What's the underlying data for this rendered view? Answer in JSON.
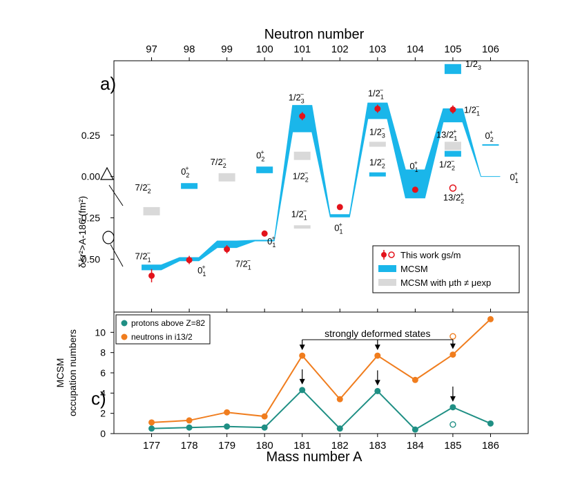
{
  "figure": {
    "top_axis_title": "Neutron number",
    "bottom_axis_title": "Mass number A",
    "colors": {
      "mcsm": "#1ab6ea",
      "mcsm_mismatch": "#d9d9d9",
      "data": "#e3131b",
      "protons": "#1f8f84",
      "neutrons": "#f07d1e"
    }
  },
  "chart_data": [
    {
      "type": "scatter",
      "panel_label": "a)",
      "ylabel": "δ<r²>A-186 (fm²)",
      "xlabel": "",
      "x_top_label": "Neutron number",
      "xlim": [
        176,
        187
      ],
      "ylim": [
        -0.82,
        0.7
      ],
      "x_ticks": [
        177,
        178,
        179,
        180,
        181,
        182,
        183,
        184,
        185,
        186
      ],
      "neutron_ticks": [
        "97",
        "98",
        "99",
        "100",
        "101",
        "102",
        "103",
        "104",
        "105",
        "106"
      ],
      "y_ticks": [
        0.25,
        0.0,
        -0.25,
        -0.5
      ],
      "y_tick_labels": [
        "0.25",
        "0.00",
        "-0.25",
        "-0.50"
      ],
      "legend_position": "bottom-right",
      "legend": [
        "This work gs/m",
        "MCSM",
        "MCSM with μth ≠ μexp"
      ],
      "measured": [
        {
          "A": 177,
          "y": -0.6,
          "err": 0.04
        },
        {
          "A": 178,
          "y": -0.505,
          "err": 0.025
        },
        {
          "A": 179,
          "y": -0.44,
          "err": 0.025
        },
        {
          "A": 180,
          "y": -0.345,
          "err": 0.018
        },
        {
          "A": 181,
          "y": 0.365,
          "err": 0.025
        },
        {
          "A": 182,
          "y": -0.185,
          "err": 0.012
        },
        {
          "A": 183,
          "y": 0.41,
          "err": 0.025
        },
        {
          "A": 184,
          "y": -0.08,
          "err": 0.012
        },
        {
          "A": 185,
          "y": 0.405,
          "err": 0.025
        }
      ],
      "measured_isomer": [
        {
          "A": 185,
          "y": -0.07
        }
      ],
      "mcsm_band_lower": [
        {
          "A": 177,
          "y": -0.565
        },
        {
          "A": 178,
          "y": -0.51
        },
        {
          "A": 179,
          "y": -0.43
        },
        {
          "A": 180,
          "y": -0.39
        },
        {
          "A": 181,
          "y": 0.27
        },
        {
          "A": 182,
          "y": -0.245
        },
        {
          "A": 183,
          "y": 0.35
        },
        {
          "A": 184,
          "y": -0.13
        },
        {
          "A": 185,
          "y": 0.33
        },
        {
          "A": 186,
          "y": 0.0
        }
      ],
      "mcsm_band_upper": [
        {
          "A": 177,
          "y": -0.535
        },
        {
          "A": 178,
          "y": -0.49
        },
        {
          "A": 179,
          "y": -0.39
        },
        {
          "A": 180,
          "y": -0.385
        },
        {
          "A": 181,
          "y": 0.43
        },
        {
          "A": 182,
          "y": -0.23
        },
        {
          "A": 183,
          "y": 0.445
        },
        {
          "A": 184,
          "y": 0.04
        },
        {
          "A": 185,
          "y": 0.41
        },
        {
          "A": 186,
          "y": 0.0
        }
      ],
      "mcsm_levels": [
        {
          "A": 178,
          "y_low": -0.075,
          "y_high": -0.04,
          "label": "0₂⁺"
        },
        {
          "A": 180,
          "y_low": 0.02,
          "y_high": 0.06,
          "label": "0₂⁺"
        },
        {
          "A": 183,
          "y_low": 0.0,
          "y_high": 0.025,
          "label": "1/2₂⁻"
        },
        {
          "A": 185,
          "y_low": 0.62,
          "y_high": 0.68,
          "label": "1/2₃⁻"
        },
        {
          "A": 185,
          "y_low": 0.12,
          "y_high": 0.155,
          "label": "1/2₂⁻"
        },
        {
          "A": 186,
          "y_low": 0.19,
          "y_high": 0.195,
          "label": "0₂⁺"
        }
      ],
      "mcsm_mismatch_levels": [
        {
          "A": 177,
          "y_low": -0.235,
          "y_high": -0.185,
          "label": "7/2₂⁻"
        },
        {
          "A": 179,
          "y_low": -0.03,
          "y_high": 0.02,
          "label": "7/2₂⁻"
        },
        {
          "A": 181,
          "y_low": 0.1,
          "y_high": 0.15,
          "label": "1/2₂⁻"
        },
        {
          "A": 181,
          "y_low": -0.315,
          "y_high": -0.295,
          "label": "1/2₁⁻"
        },
        {
          "A": 183,
          "y_low": 0.18,
          "y_high": 0.21,
          "label": "1/2₃⁻"
        },
        {
          "A": 185,
          "y_low": 0.16,
          "y_high": 0.21,
          "label": "13/2₁⁺"
        }
      ],
      "state_labels": [
        {
          "A": 177,
          "y": -0.5,
          "label": "7/2₁⁻"
        },
        {
          "A": 178,
          "y": -0.545,
          "label": "0₁⁺"
        },
        {
          "A": 179,
          "y": -0.48,
          "label": "7/2₁⁻"
        },
        {
          "A": 180,
          "y": -0.395,
          "label": "0₁⁺"
        },
        {
          "A": 181,
          "y": 0.46,
          "label": "1/2₃⁻"
        },
        {
          "A": 182,
          "y": -0.28,
          "label": "0₁⁺"
        },
        {
          "A": 183,
          "y": 0.485,
          "label": "1/2₁⁻"
        },
        {
          "A": 184,
          "y": 0.045,
          "label": "0₁⁺"
        },
        {
          "A": 185,
          "y": 0.385,
          "label": "1/2₁⁻"
        },
        {
          "A": 185,
          "y": -0.095,
          "label": "13/2₂⁺"
        },
        {
          "A": 186,
          "y": -0.005,
          "label": "0₁⁺"
        }
      ],
      "shape_markers": [
        "triangle",
        "circle"
      ]
    },
    {
      "type": "line",
      "panel_label": "c)",
      "ylabel": "MCSM occupation numbers",
      "xlabel": "Mass number A",
      "xlim": [
        176,
        187
      ],
      "ylim": [
        0,
        12
      ],
      "y_ticks": [
        0,
        2,
        4,
        6,
        8,
        10
      ],
      "x": [
        177,
        178,
        179,
        180,
        181,
        182,
        183,
        184,
        185,
        186
      ],
      "legend_position": "top-left",
      "annotation": "strongly deformed states",
      "arrows_at": [
        181,
        183,
        185
      ],
      "series": [
        {
          "name": "protons above Z=82",
          "values": [
            0.5,
            0.6,
            0.7,
            0.6,
            4.3,
            0.5,
            4.2,
            0.4,
            2.6,
            1.0
          ]
        },
        {
          "name": "neutrons in i13/2",
          "values": [
            1.1,
            1.3,
            2.1,
            1.7,
            7.7,
            3.4,
            7.7,
            5.3,
            7.8,
            11.3
          ]
        }
      ],
      "open_markers": [
        {
          "series": "protons above Z=82",
          "A": 185,
          "value": 0.9
        },
        {
          "series": "neutrons in i13/2",
          "A": 185,
          "value": 9.6
        }
      ]
    }
  ]
}
